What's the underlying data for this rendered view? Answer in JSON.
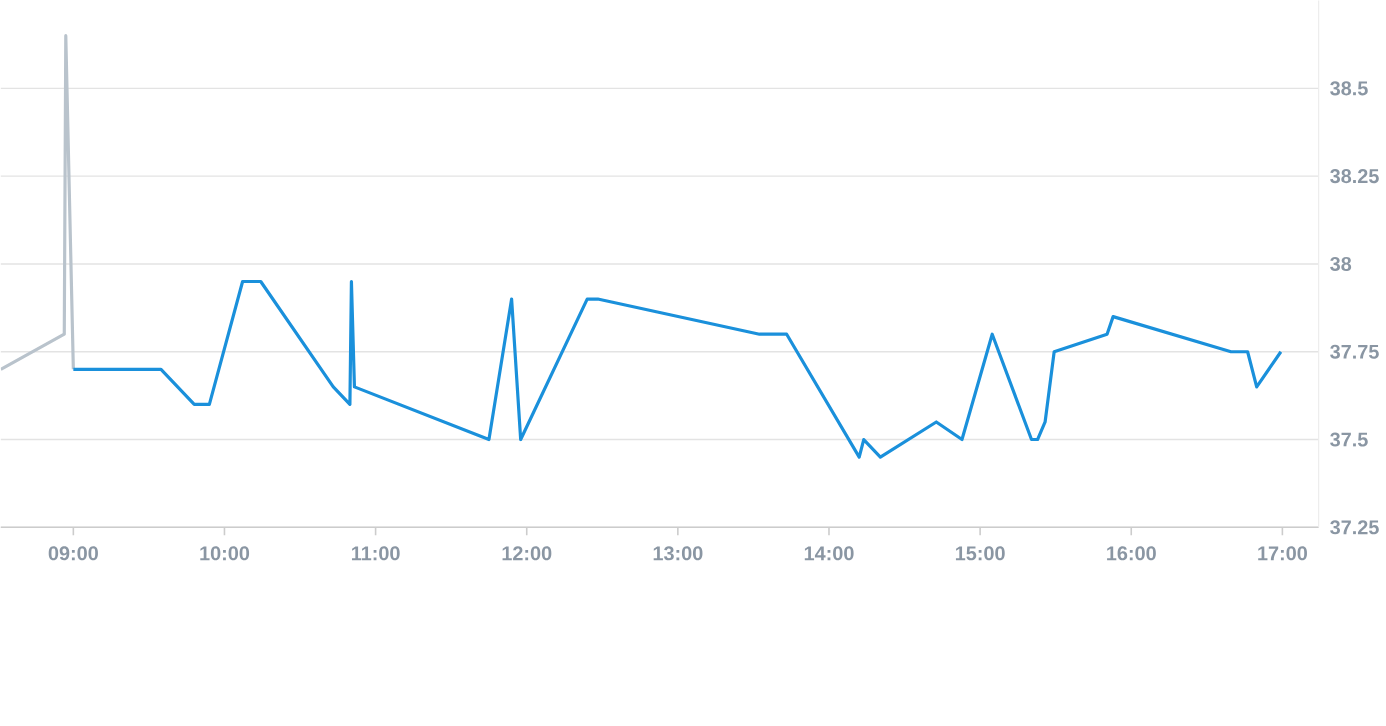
{
  "chart_data": {
    "type": "line",
    "xlim": [
      8.52,
      17.24
    ],
    "ylim": [
      37.25,
      38.75
    ],
    "xticks": [
      {
        "value": 9,
        "label": "09:00"
      },
      {
        "value": 10,
        "label": "10:00"
      },
      {
        "value": 11,
        "label": "11:00"
      },
      {
        "value": 12,
        "label": "12:00"
      },
      {
        "value": 13,
        "label": "13:00"
      },
      {
        "value": 14,
        "label": "14:00"
      },
      {
        "value": 15,
        "label": "15:00"
      },
      {
        "value": 16,
        "label": "16:00"
      },
      {
        "value": 17,
        "label": "17:00"
      }
    ],
    "yticks": [
      37.25,
      37.5,
      37.75,
      38,
      38.25,
      38.5
    ],
    "grid": "y",
    "series": [
      {
        "color": "#b9c3cc",
        "x": [
          8.52,
          8.94,
          8.95,
          9.0
        ],
        "values": [
          37.7,
          37.8,
          38.65,
          37.7
        ]
      },
      {
        "color": "#1a90db",
        "x": [
          9.0,
          9.58,
          9.8,
          9.9,
          10.12,
          10.24,
          10.72,
          10.83,
          10.84,
          10.86,
          11.75,
          11.9,
          11.96,
          12.4,
          12.47,
          13.54,
          13.72,
          14.2,
          14.23,
          14.34,
          14.71,
          14.88,
          15.08,
          15.34,
          15.38,
          15.43,
          15.49,
          15.84,
          15.88,
          16.66,
          16.77,
          16.83,
          16.99
        ],
        "values": [
          37.7,
          37.7,
          37.6,
          37.6,
          37.95,
          37.95,
          37.65,
          37.6,
          37.95,
          37.65,
          37.5,
          37.9,
          37.5,
          37.9,
          37.9,
          37.8,
          37.8,
          37.45,
          37.5,
          37.45,
          37.55,
          37.5,
          37.8,
          37.5,
          37.5,
          37.55,
          37.75,
          37.8,
          37.85,
          37.75,
          37.75,
          37.65,
          37.75
        ]
      }
    ]
  }
}
